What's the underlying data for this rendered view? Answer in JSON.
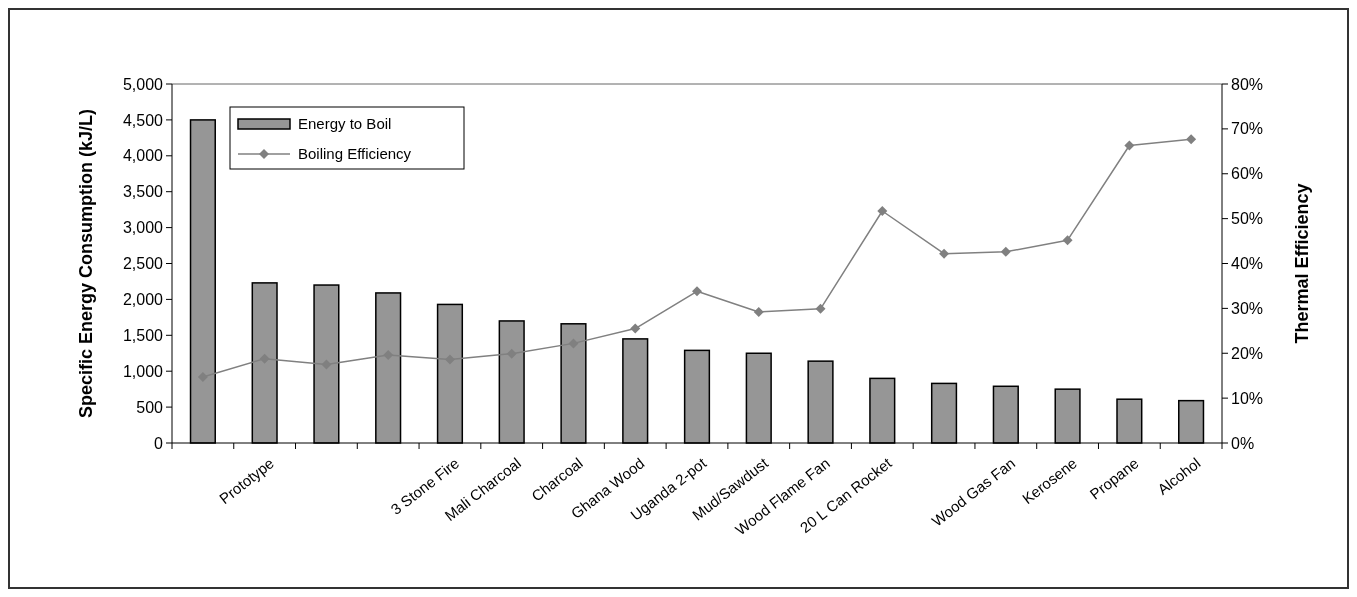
{
  "chart_data": {
    "type": "bar",
    "ylabel": "Specific Energy Consumption (kJ/L)",
    "y2label": "Thermal Efficiency",
    "categories": [
      null,
      "Prototype",
      null,
      null,
      "3 Stone Fire",
      "Mali Charcoal",
      "Charcoal",
      "Ghana Wood",
      "Uganda 2-pot",
      "Mud/Sawdust",
      "Wood Flame Fan",
      "20 L Can Rocket",
      null,
      "Wood Gas Fan",
      "Kerosene",
      "Propane",
      "Alcohol"
    ],
    "series": [
      {
        "name": "Energy to Boil",
        "color": "#969696",
        "values": [
          4500,
          2230,
          2200,
          2090,
          1930,
          1700,
          1660,
          1450,
          1290,
          1250,
          1140,
          900,
          830,
          790,
          750,
          610,
          590
        ]
      },
      {
        "name": "Boiling Efficiency",
        "type": "line",
        "axis": "y2",
        "color": "#808080",
        "marker": "diamond",
        "values": [
          14.7,
          18.8,
          17.5,
          19.6,
          18.6,
          19.9,
          22.2,
          25.5,
          33.8,
          29.2,
          29.9,
          51.7,
          42.2,
          42.6,
          45.2,
          66.3,
          67.7
        ]
      }
    ],
    "ylim": [
      0,
      5000
    ],
    "yticks": [
      {
        "value": 0,
        "label": "0"
      },
      {
        "value": 500,
        "label": "500"
      },
      {
        "value": 1000,
        "label": "1,000"
      },
      {
        "value": 1500,
        "label": "1,500"
      },
      {
        "value": 2000,
        "label": "2,000"
      },
      {
        "value": 2500,
        "label": "2,500"
      },
      {
        "value": 3000,
        "label": "3,000"
      },
      {
        "value": 3500,
        "label": "3,500"
      },
      {
        "value": 4000,
        "label": "4,000"
      },
      {
        "value": 4500,
        "label": "4,500"
      },
      {
        "value": 5000,
        "label": "5,000"
      }
    ],
    "y2lim": [
      0,
      80
    ],
    "y2ticks": [
      {
        "value": 0,
        "label": "0%"
      },
      {
        "value": 10,
        "label": "10%"
      },
      {
        "value": 20,
        "label": "20%"
      },
      {
        "value": 30,
        "label": "30%"
      },
      {
        "value": 40,
        "label": "40%"
      },
      {
        "value": 50,
        "label": "50%"
      },
      {
        "value": 60,
        "label": "60%"
      },
      {
        "value": 70,
        "label": "70%"
      },
      {
        "value": 80,
        "label": "80%"
      }
    ],
    "grid": false,
    "legend": "top left"
  }
}
